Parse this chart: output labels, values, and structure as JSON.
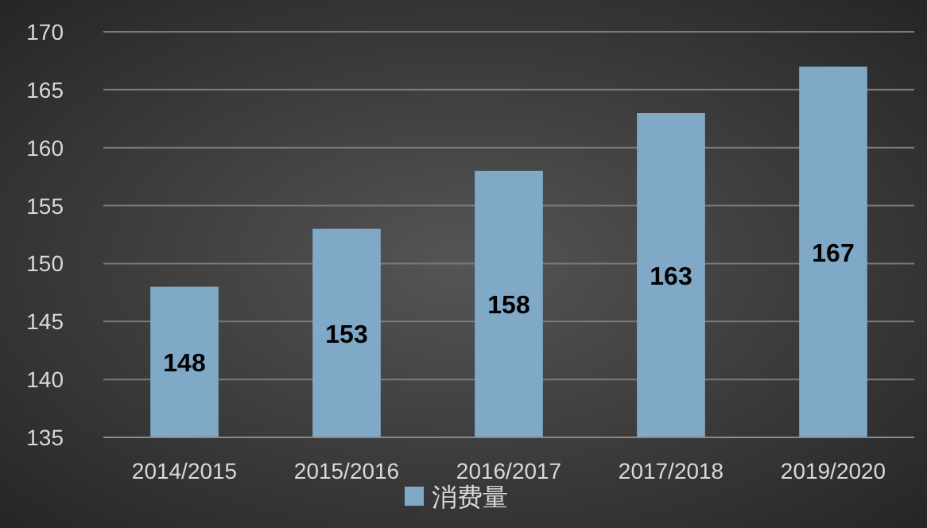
{
  "chart_data": {
    "type": "bar",
    "categories": [
      "2014/2015",
      "2015/2016",
      "2016/2017",
      "2017/2018",
      "2019/2020"
    ],
    "series": [
      {
        "name": "消费量",
        "color": "#7fa9c7",
        "values": [
          148,
          153,
          158,
          163,
          167
        ]
      }
    ],
    "ylim": [
      135,
      170
    ],
    "yticks": [
      135,
      140,
      145,
      150,
      155,
      160,
      165,
      170
    ],
    "grid": "y",
    "legend": "bottom",
    "data_labels": true
  }
}
